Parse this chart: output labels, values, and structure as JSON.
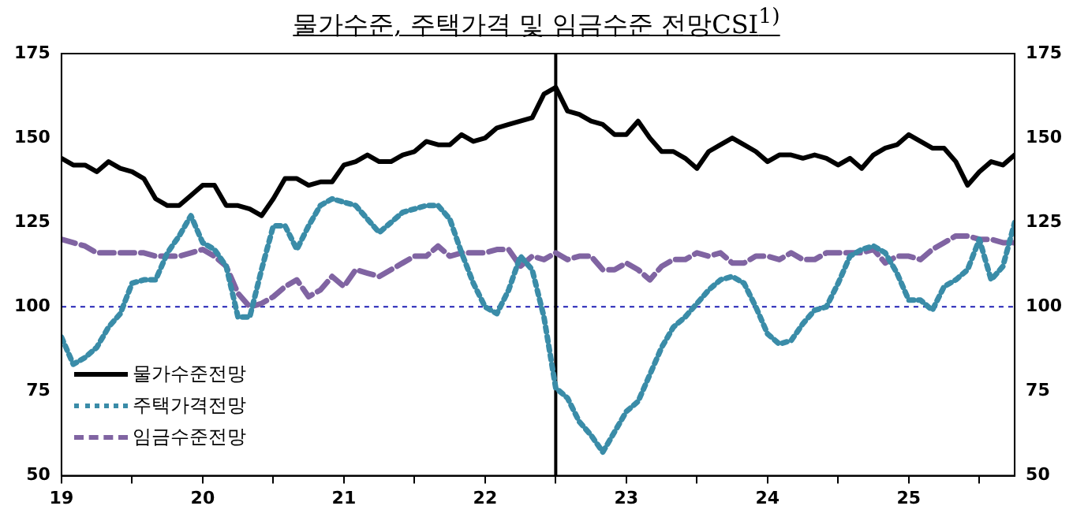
{
  "chart_data": {
    "type": "line",
    "title": "물가수준, 주택가격 및 임금수준 전망CSI$^{1)}$",
    "x": [
      "2019-01",
      "2019-02",
      "2019-03",
      "2019-04",
      "2019-05",
      "2019-06",
      "2019-07",
      "2019-08",
      "2019-09",
      "2019-10",
      "2019-11",
      "2019-12",
      "2020-01",
      "2020-02",
      "2020-03",
      "2020-04",
      "2020-05",
      "2020-06",
      "2020-07",
      "2020-08",
      "2020-09",
      "2020-10",
      "2020-11",
      "2020-12",
      "2021-01",
      "2021-02",
      "2021-03",
      "2021-04",
      "2021-05",
      "2021-06",
      "2021-07",
      "2021-08",
      "2021-09",
      "2021-10",
      "2021-11",
      "2021-12",
      "2022-01",
      "2022-02",
      "2022-03",
      "2022-04",
      "2022-05",
      "2022-06",
      "2022-07",
      "2022-08",
      "2022-09",
      "2022-10",
      "2022-11",
      "2022-12",
      "2023-01",
      "2023-02",
      "2023-03",
      "2023-04",
      "2023-05",
      "2023-06",
      "2023-07",
      "2023-08",
      "2023-09",
      "2023-10",
      "2023-11",
      "2023-12",
      "2024-01",
      "2024-02",
      "2024-03",
      "2024-04",
      "2024-05",
      "2024-06",
      "2024-07",
      "2024-08",
      "2024-09",
      "2024-10",
      "2024-11",
      "2024-12",
      "2025-01",
      "2025-02",
      "2025-03",
      "2025-04",
      "2025-05",
      "2025-06",
      "2025-07",
      "2025-08",
      "2025-09",
      "2025-10"
    ],
    "series": [
      {
        "name": "물가수준전망",
        "color": "#000000",
        "line_style": "solid",
        "values": [
          144,
          142,
          142,
          140,
          143,
          141,
          140,
          138,
          132,
          130,
          130,
          133,
          136,
          136,
          130,
          130,
          129,
          127,
          132,
          138,
          138,
          136,
          137,
          137,
          142,
          143,
          145,
          143,
          143,
          145,
          146,
          149,
          148,
          148,
          151,
          149,
          150,
          153,
          154,
          155,
          156,
          163,
          165,
          158,
          157,
          155,
          154,
          151,
          151,
          155,
          150,
          146,
          146,
          144,
          141,
          146,
          148,
          150,
          148,
          146,
          143,
          145,
          145,
          144,
          145,
          144,
          142,
          144,
          141,
          145,
          147,
          148,
          151,
          149,
          147,
          147,
          143,
          136,
          140,
          143,
          142,
          145
        ]
      },
      {
        "name": "주택가격전망",
        "color": "#3a8ca8",
        "line_style": "dotted",
        "values": [
          91,
          83,
          85,
          88,
          94,
          98,
          107,
          108,
          108,
          116,
          121,
          127,
          119,
          117,
          112,
          97,
          97,
          111,
          124,
          124,
          117,
          124,
          130,
          132,
          131,
          130,
          126,
          122,
          125,
          128,
          129,
          130,
          130,
          126,
          116,
          107,
          100,
          98,
          105,
          115,
          111,
          97,
          76,
          73,
          66,
          62,
          57,
          63,
          69,
          72,
          80,
          88,
          94,
          97,
          101,
          105,
          108,
          109,
          107,
          100,
          92,
          89,
          90,
          95,
          99,
          100,
          107,
          115,
          117,
          118,
          116,
          110,
          102,
          102,
          99,
          106,
          108,
          111,
          120,
          108,
          112,
          125
        ]
      },
      {
        "name": "임금수준전망",
        "color": "#8064a2",
        "line_style": "dashed",
        "values": [
          120,
          119,
          118,
          116,
          116,
          116,
          116,
          116,
          115,
          115,
          115,
          116,
          117,
          115,
          112,
          104,
          100,
          101,
          103,
          106,
          108,
          103,
          105,
          109,
          106,
          111,
          110,
          109,
          111,
          113,
          115,
          115,
          118,
          115,
          116,
          116,
          116,
          117,
          117,
          112,
          115,
          114,
          116,
          114,
          115,
          115,
          111,
          111,
          113,
          111,
          108,
          112,
          114,
          114,
          116,
          115,
          116,
          113,
          113,
          115,
          115,
          114,
          116,
          114,
          114,
          116,
          116,
          116,
          116,
          117,
          113,
          115,
          115,
          114,
          117,
          119,
          121,
          121,
          120,
          120,
          119,
          119
        ]
      }
    ],
    "xlim": [
      "2019-01",
      "2025-10"
    ],
    "xticks": [
      {
        "value": "2019-01",
        "label": "19"
      },
      {
        "value": "2019-07",
        "label": null
      },
      {
        "value": "2020-01",
        "label": "20"
      },
      {
        "value": "2020-07",
        "label": null
      },
      {
        "value": "2021-01",
        "label": "21"
      },
      {
        "value": "2021-07",
        "label": null
      },
      {
        "value": "2022-01",
        "label": "22"
      },
      {
        "value": "2022-07",
        "label": null
      },
      {
        "value": "2023-01",
        "label": "23"
      },
      {
        "value": "2023-07",
        "label": null
      },
      {
        "value": "2024-01",
        "label": "24"
      },
      {
        "value": "2024-07",
        "label": null
      },
      {
        "value": "2025-01",
        "label": "25"
      },
      {
        "value": "2025-07",
        "label": null
      }
    ],
    "ylim": [
      50,
      175
    ],
    "yticks": [
      50,
      75,
      100,
      125,
      150,
      175
    ],
    "y2lim": [
      50,
      175
    ],
    "y2ticks": [
      50,
      75,
      100,
      125,
      150,
      175
    ],
    "ref_lines": [
      {
        "axis": "y",
        "value": 100,
        "color": "#1f1fb4",
        "line_style": "dotted"
      },
      {
        "axis": "x",
        "value": "2022-07",
        "color": "#000000",
        "line_style": "solid"
      }
    ],
    "legend": "bottom left"
  }
}
